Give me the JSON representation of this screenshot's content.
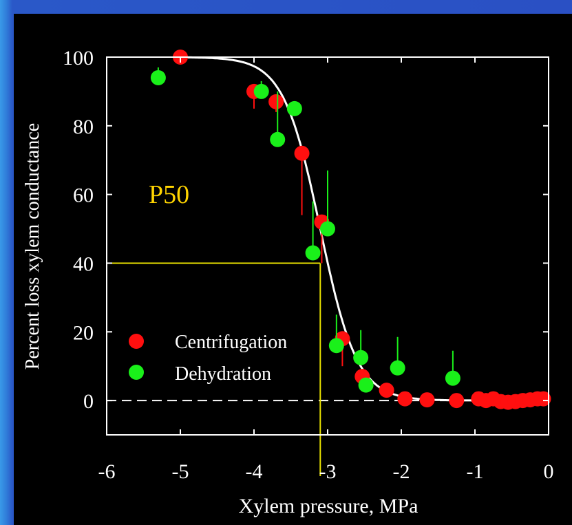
{
  "chart_data": {
    "type": "scatter",
    "ylabel": "Percent loss xylem conductance",
    "xlabel": "Xylem pressure, MPa",
    "xlim": [
      -6,
      0
    ],
    "ylim": [
      -10,
      100
    ],
    "xticks": [
      "-6",
      "-5",
      "-4",
      "-3",
      "-2",
      "-1",
      "0"
    ],
    "yticks": [
      "100",
      "80",
      "60",
      "40",
      "20",
      "0"
    ],
    "annotation": "P50",
    "p50": {
      "x": -3.1,
      "y": 40
    },
    "zero_line": 0,
    "legend": {
      "position": "lower-left"
    },
    "fit_curve": {
      "type": "sigmoid",
      "x50": -3.1,
      "slope": 4.0
    },
    "colors": {
      "background": "#000000",
      "centrifugation": "#ff0f0f",
      "dehydration": "#1af01a",
      "fit": "#ffffff",
      "p50": "#e8e000",
      "axis": "#ffffff",
      "legend_text": "#ffffff",
      "annotation": "#ffd400"
    },
    "series": [
      {
        "name": "Centrifugation",
        "points": [
          {
            "x": -5.0,
            "y": 100,
            "err": 0
          },
          {
            "x": -4.0,
            "y": 90,
            "err": 5
          },
          {
            "x": -3.7,
            "y": 87,
            "err": 3
          },
          {
            "x": -3.35,
            "y": 72,
            "err": 18
          },
          {
            "x": -3.08,
            "y": 52,
            "err": 12
          },
          {
            "x": -2.8,
            "y": 18,
            "err": 8
          },
          {
            "x": -2.53,
            "y": 7,
            "err": 0
          },
          {
            "x": -2.2,
            "y": 3,
            "err": 0
          },
          {
            "x": -1.95,
            "y": 0.5,
            "err": 0
          },
          {
            "x": -1.65,
            "y": 0.2,
            "err": 0
          },
          {
            "x": -1.25,
            "y": 0,
            "err": 0
          },
          {
            "x": -0.95,
            "y": 0.5,
            "err": 0
          },
          {
            "x": -0.85,
            "y": 0,
            "err": 0
          },
          {
            "x": -0.75,
            "y": 0.5,
            "err": 0
          },
          {
            "x": -0.65,
            "y": -0.3,
            "err": 0
          },
          {
            "x": -0.55,
            "y": -0.5,
            "err": 0
          },
          {
            "x": -0.45,
            "y": -0.3,
            "err": 0
          },
          {
            "x": -0.35,
            "y": 0,
            "err": 0
          },
          {
            "x": -0.25,
            "y": 0.2,
            "err": 0
          },
          {
            "x": -0.15,
            "y": 0.5,
            "err": 0
          },
          {
            "x": -0.07,
            "y": 0.5,
            "err": 0
          }
        ]
      },
      {
        "name": "Dehydration",
        "points": [
          {
            "x": -5.3,
            "y": 94,
            "err": 3
          },
          {
            "x": -3.9,
            "y": 90,
            "err": 3
          },
          {
            "x": -3.68,
            "y": 76,
            "err": 14
          },
          {
            "x": -3.45,
            "y": 85,
            "err": 0
          },
          {
            "x": -3.2,
            "y": 43,
            "err": 15
          },
          {
            "x": -3.0,
            "y": 50,
            "err": 17
          },
          {
            "x": -2.88,
            "y": 16,
            "err": 9
          },
          {
            "x": -2.55,
            "y": 12.5,
            "err": 8
          },
          {
            "x": -2.48,
            "y": 4.5,
            "err": 0
          },
          {
            "x": -2.05,
            "y": 9.5,
            "err": 9
          },
          {
            "x": -1.3,
            "y": 6.5,
            "err": 8
          }
        ]
      }
    ]
  }
}
